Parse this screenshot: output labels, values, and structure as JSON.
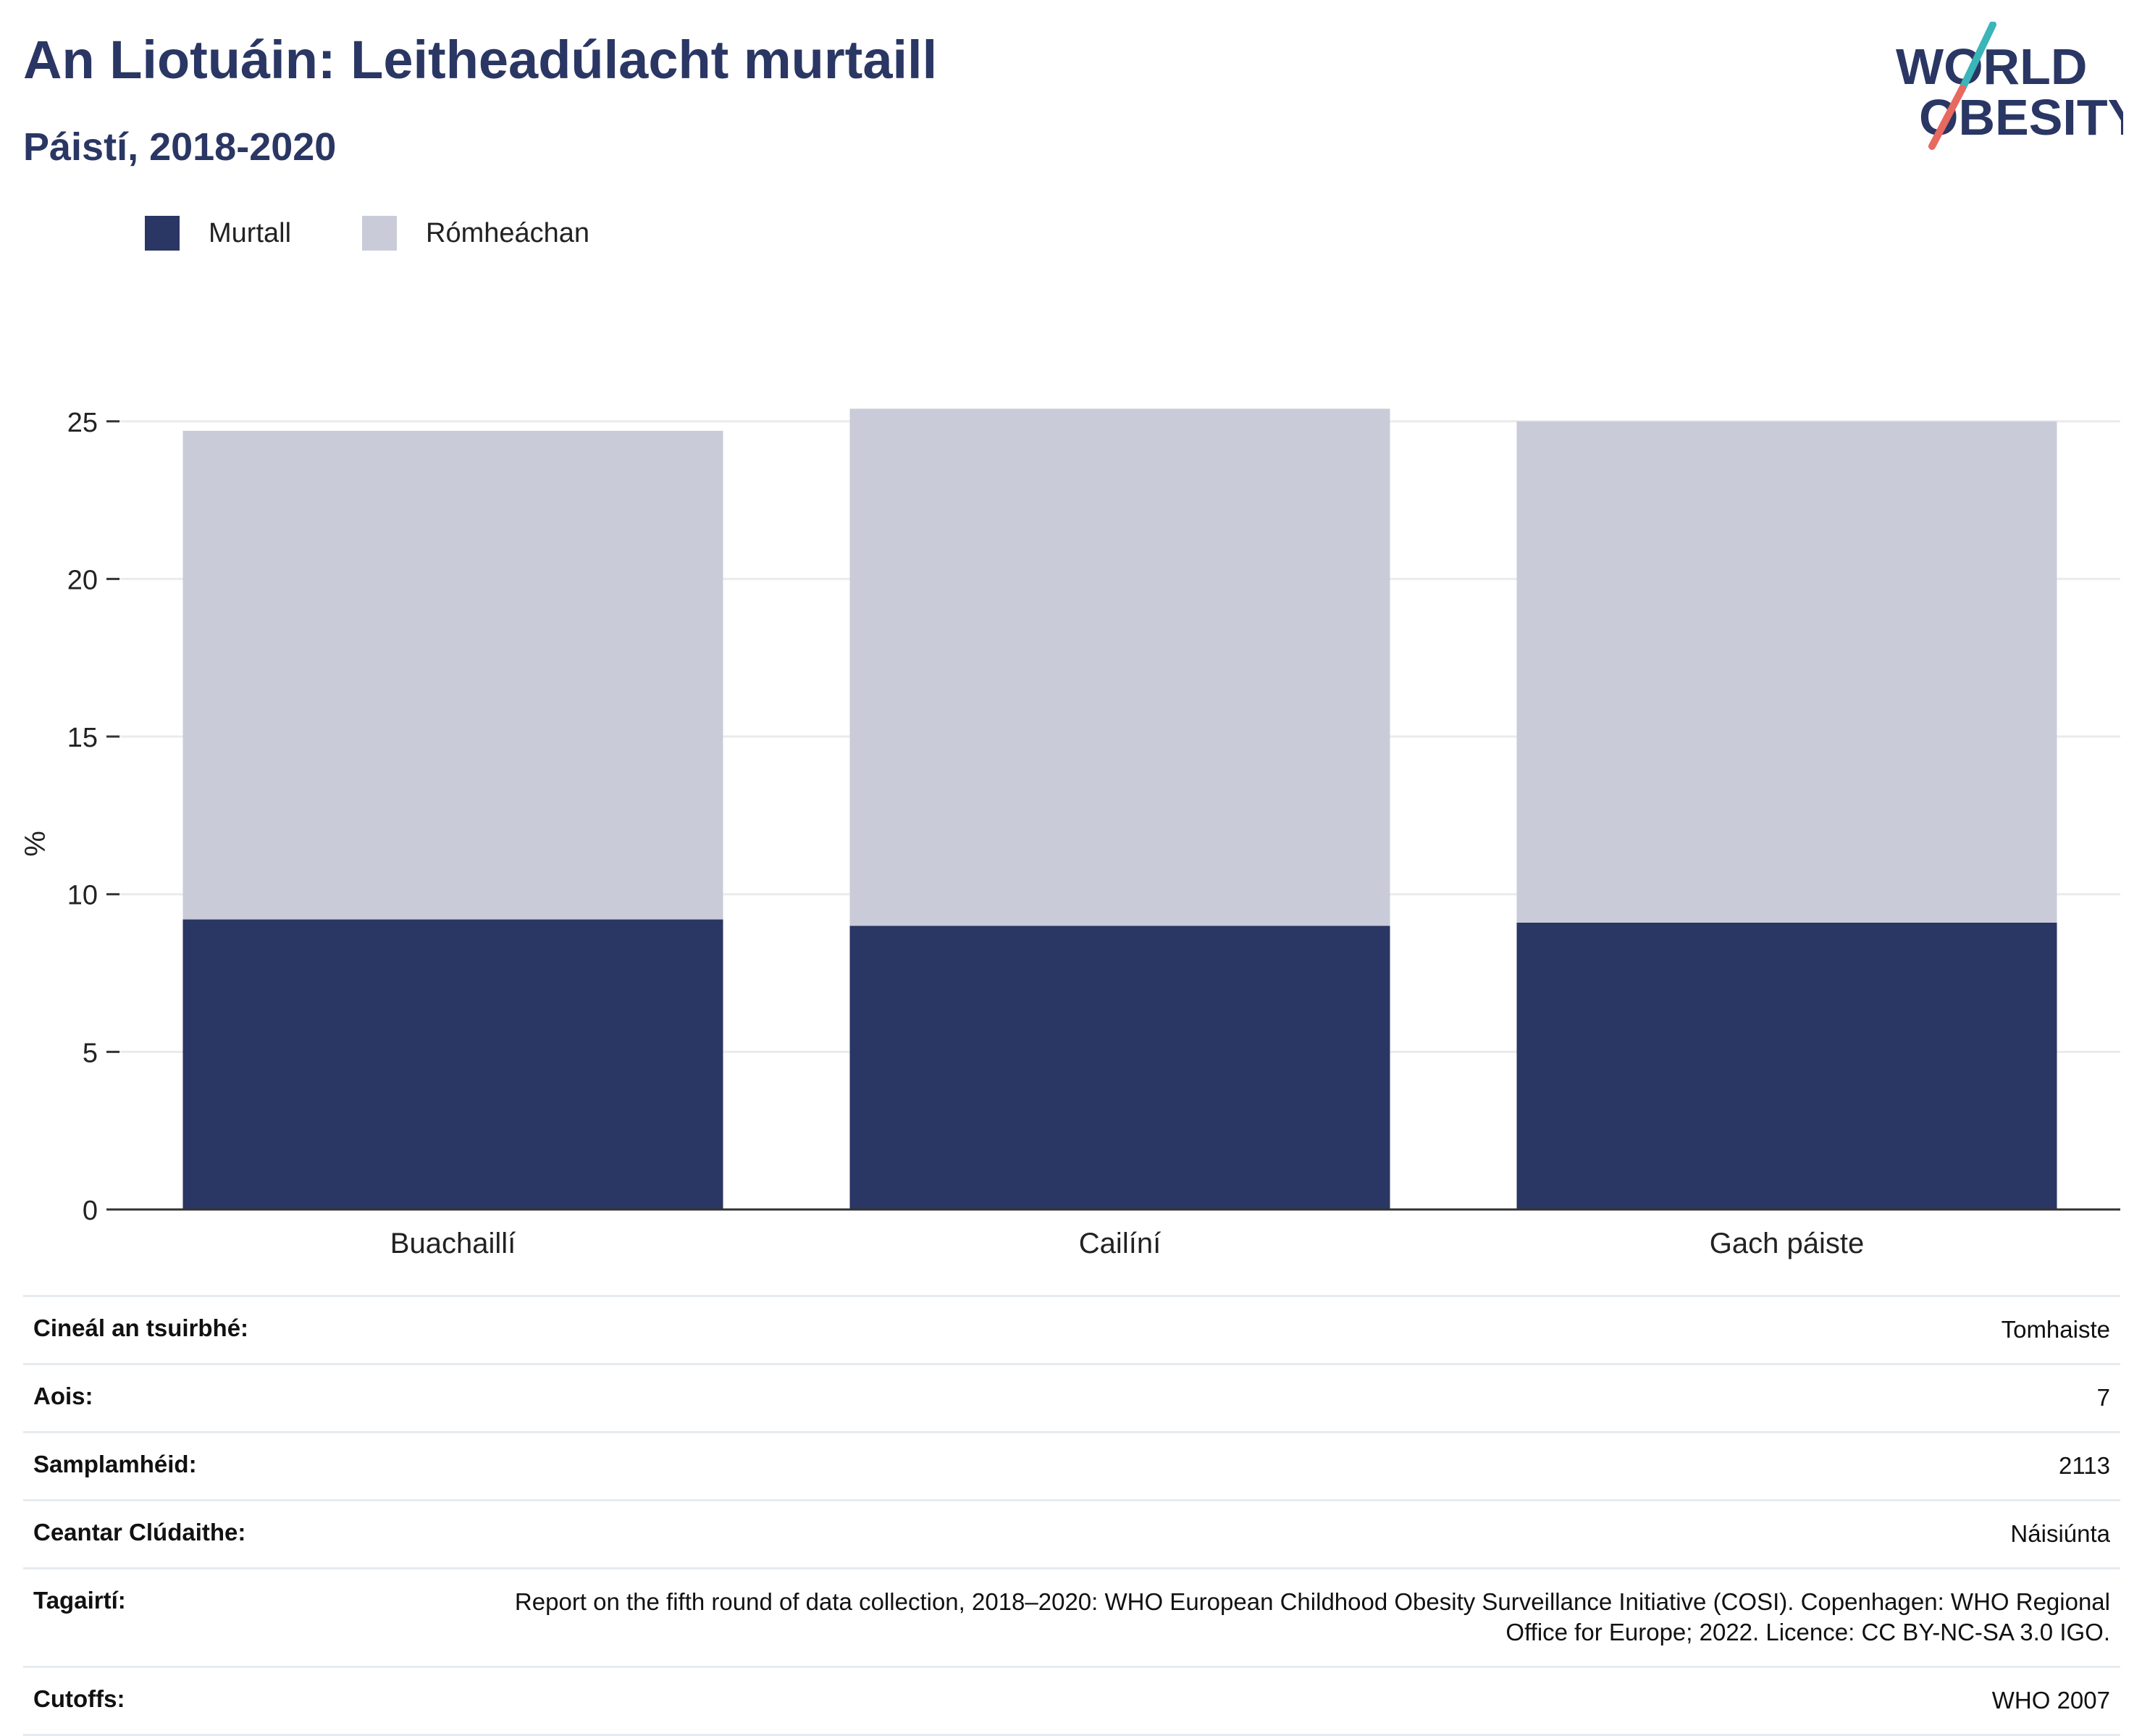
{
  "title": "An Liotuáin: Leitheadúlacht murtaill",
  "subtitle": "Páistí, 2018-2020",
  "logo": {
    "line1": "WORLD",
    "line2": "OBESITY",
    "slash_colors": [
      "#3ab5b8",
      "#e8695f"
    ],
    "text_color": "#2a3663"
  },
  "chart_data": {
    "type": "bar",
    "stacked": true,
    "categories": [
      "Buachaillí",
      "Cailíní",
      "Gach páiste"
    ],
    "series": [
      {
        "name": "Murtall",
        "color": "#2a3663",
        "values": [
          9.2,
          9.0,
          9.1
        ]
      },
      {
        "name": "Rómheáchan",
        "color": "#c9ccd8",
        "values": [
          15.5,
          16.4,
          15.9
        ]
      }
    ],
    "ylabel": "%",
    "ylim": [
      0,
      25.5
    ],
    "yticks": [
      "0",
      "5",
      "10",
      "15",
      "20",
      "25"
    ],
    "grid": true,
    "legend_position": "top-left"
  },
  "details": [
    {
      "key": "Cineál an tsuirbhé:",
      "value": "Tomhaiste"
    },
    {
      "key": "Aois:",
      "value": "7"
    },
    {
      "key": "Samplamhéid:",
      "value": "2113"
    },
    {
      "key": "Ceantar Clúdaithe:",
      "value": "Náisiúnta"
    },
    {
      "key": "Tagairtí:",
      "value": "Report on the fifth round of data collection, 2018–2020: WHO European Childhood Obesity Surveillance Initiative (COSI). Copenhagen: WHO Regional Office for Europe; 2022. Licence: CC BY-NC-SA 3.0 IGO."
    },
    {
      "key": "Cutoffs:",
      "value": "WHO 2007"
    }
  ]
}
